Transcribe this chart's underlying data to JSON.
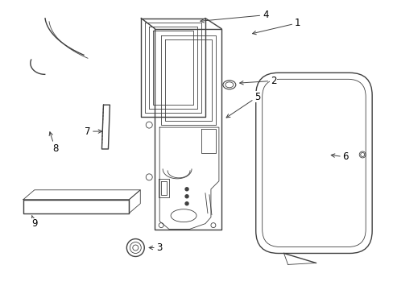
{
  "background_color": "#ffffff",
  "line_color": "#404040",
  "label_color": "#000000",
  "lw_main": 1.0,
  "lw_thin": 0.6,
  "lw_med": 0.8
}
